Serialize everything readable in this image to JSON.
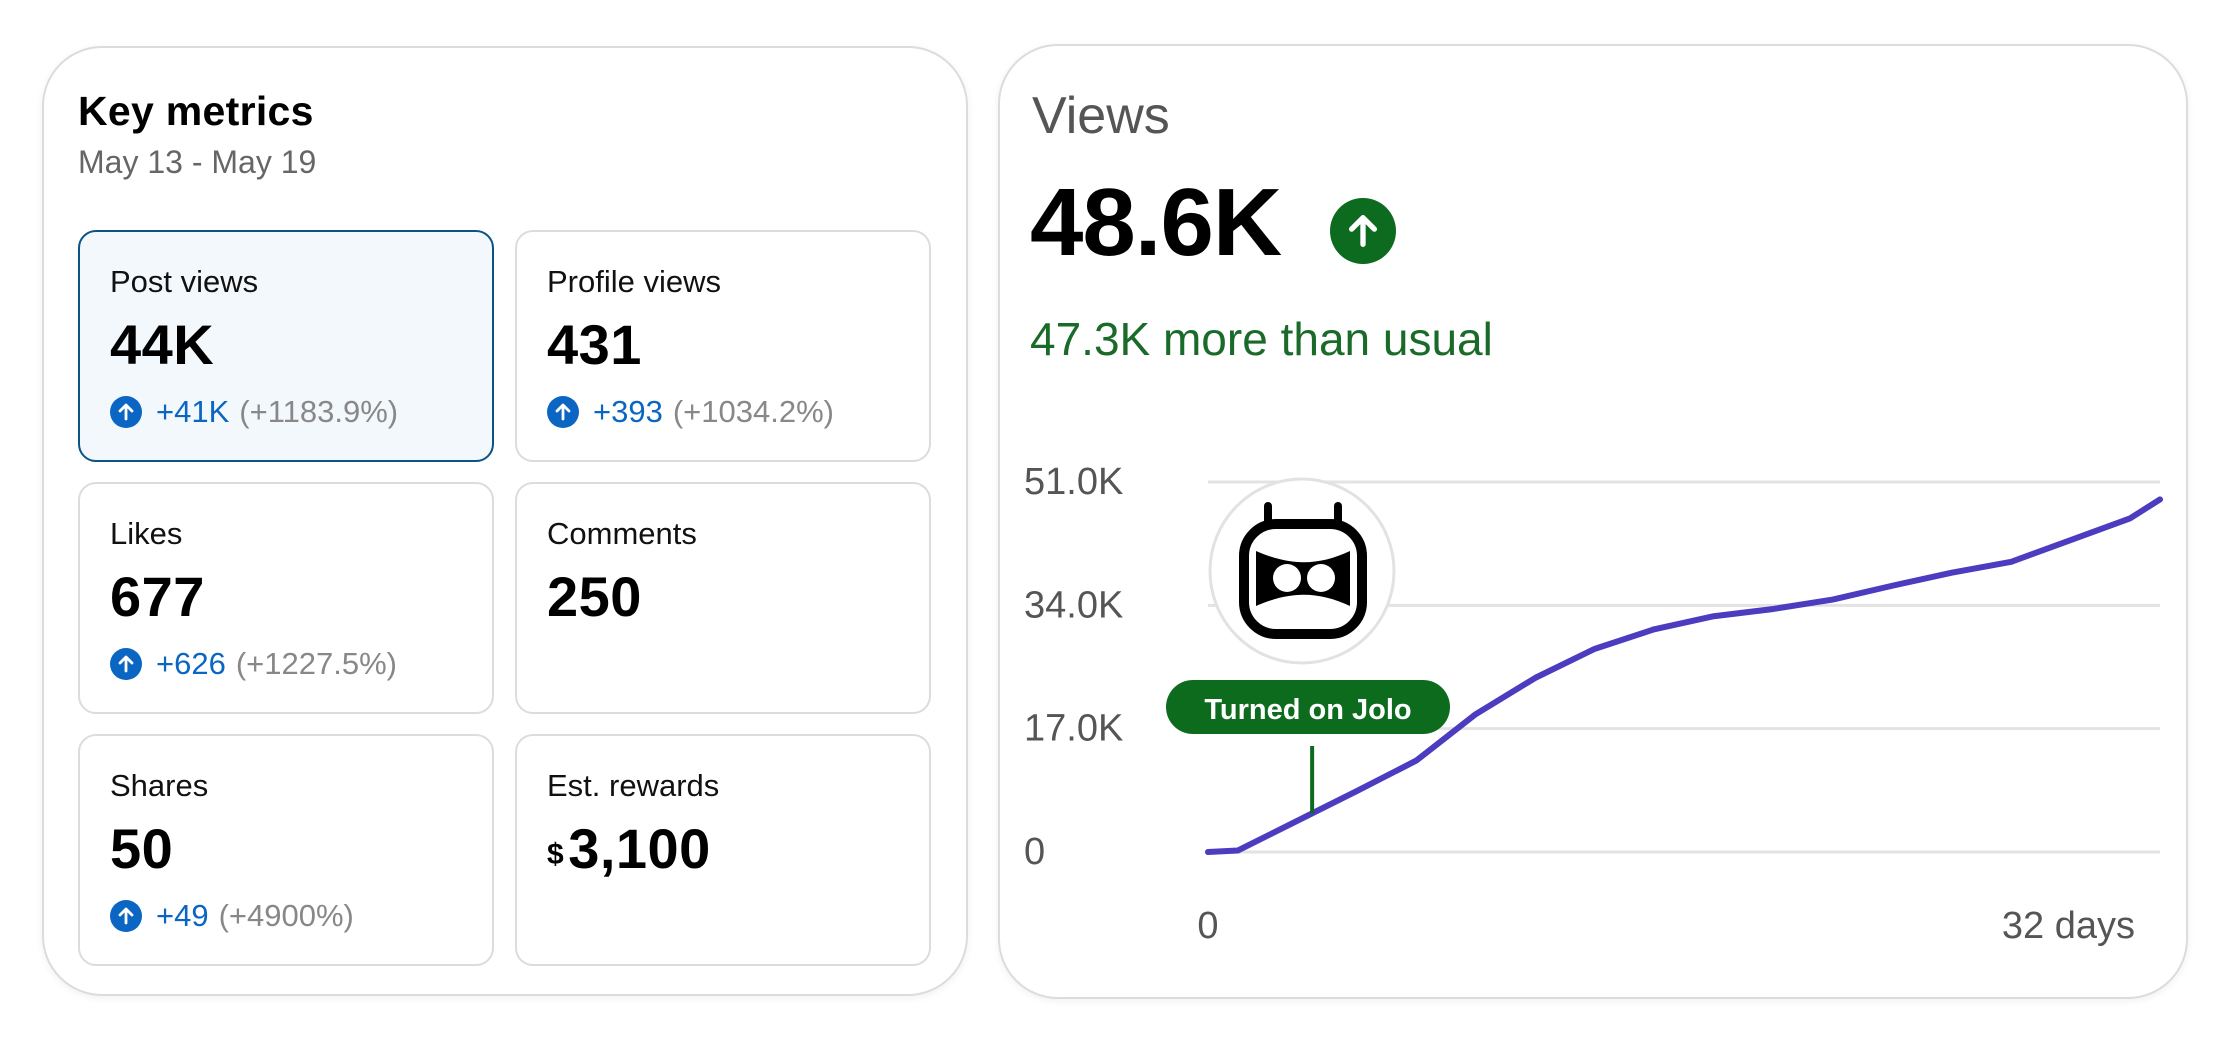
{
  "key_metrics": {
    "title": "Key metrics",
    "date_range": "May 13 - May 19",
    "cards": [
      {
        "label": "Post views",
        "value": "44K",
        "delta": "+41K",
        "pct": "(+1183.9%)"
      },
      {
        "label": "Profile views",
        "value": "431",
        "delta": "+393",
        "pct": "(+1034.2%)"
      },
      {
        "label": "Likes",
        "value": "677",
        "delta": "+626",
        "pct": "(+1227.5%)"
      },
      {
        "label": "Comments",
        "value": "250"
      },
      {
        "label": "Shares",
        "value": "50",
        "delta": "+49",
        "pct": "(+4900%)"
      },
      {
        "label": "Est. rewards",
        "currency": "$",
        "value": "3,100"
      }
    ]
  },
  "views": {
    "title": "Views",
    "total": "48.6K",
    "comparison": "47.3K more than usual",
    "annotation": "Turned on Jolo",
    "logo_icon": "jolo-robot-icon",
    "colors": {
      "line": "#4b3cc0",
      "up": "#0c6b1f",
      "annotation": "#0d6b1e",
      "accent_blue": "#0a66c2"
    }
  },
  "chart_data": {
    "type": "line",
    "x_ticks": [
      "0",
      "32 days"
    ],
    "y_ticks": [
      "0",
      "17.0K",
      "34.0K",
      "51.0K"
    ],
    "xlim": [
      0,
      32
    ],
    "ylim": [
      0,
      51000
    ],
    "grid": true,
    "series": [
      {
        "x": [
          0,
          1,
          3,
          5,
          7,
          9,
          11,
          13,
          15,
          17,
          19,
          21,
          23,
          25,
          27,
          29,
          31,
          32
        ],
        "values": [
          0,
          200,
          4300,
          8400,
          12600,
          19000,
          24000,
          28000,
          30700,
          32500,
          33500,
          34800,
          36700,
          38500,
          40000,
          43000,
          46000,
          48600
        ]
      }
    ],
    "annotations": [
      {
        "x": 3.5,
        "text": "Turned on Jolo"
      }
    ]
  }
}
